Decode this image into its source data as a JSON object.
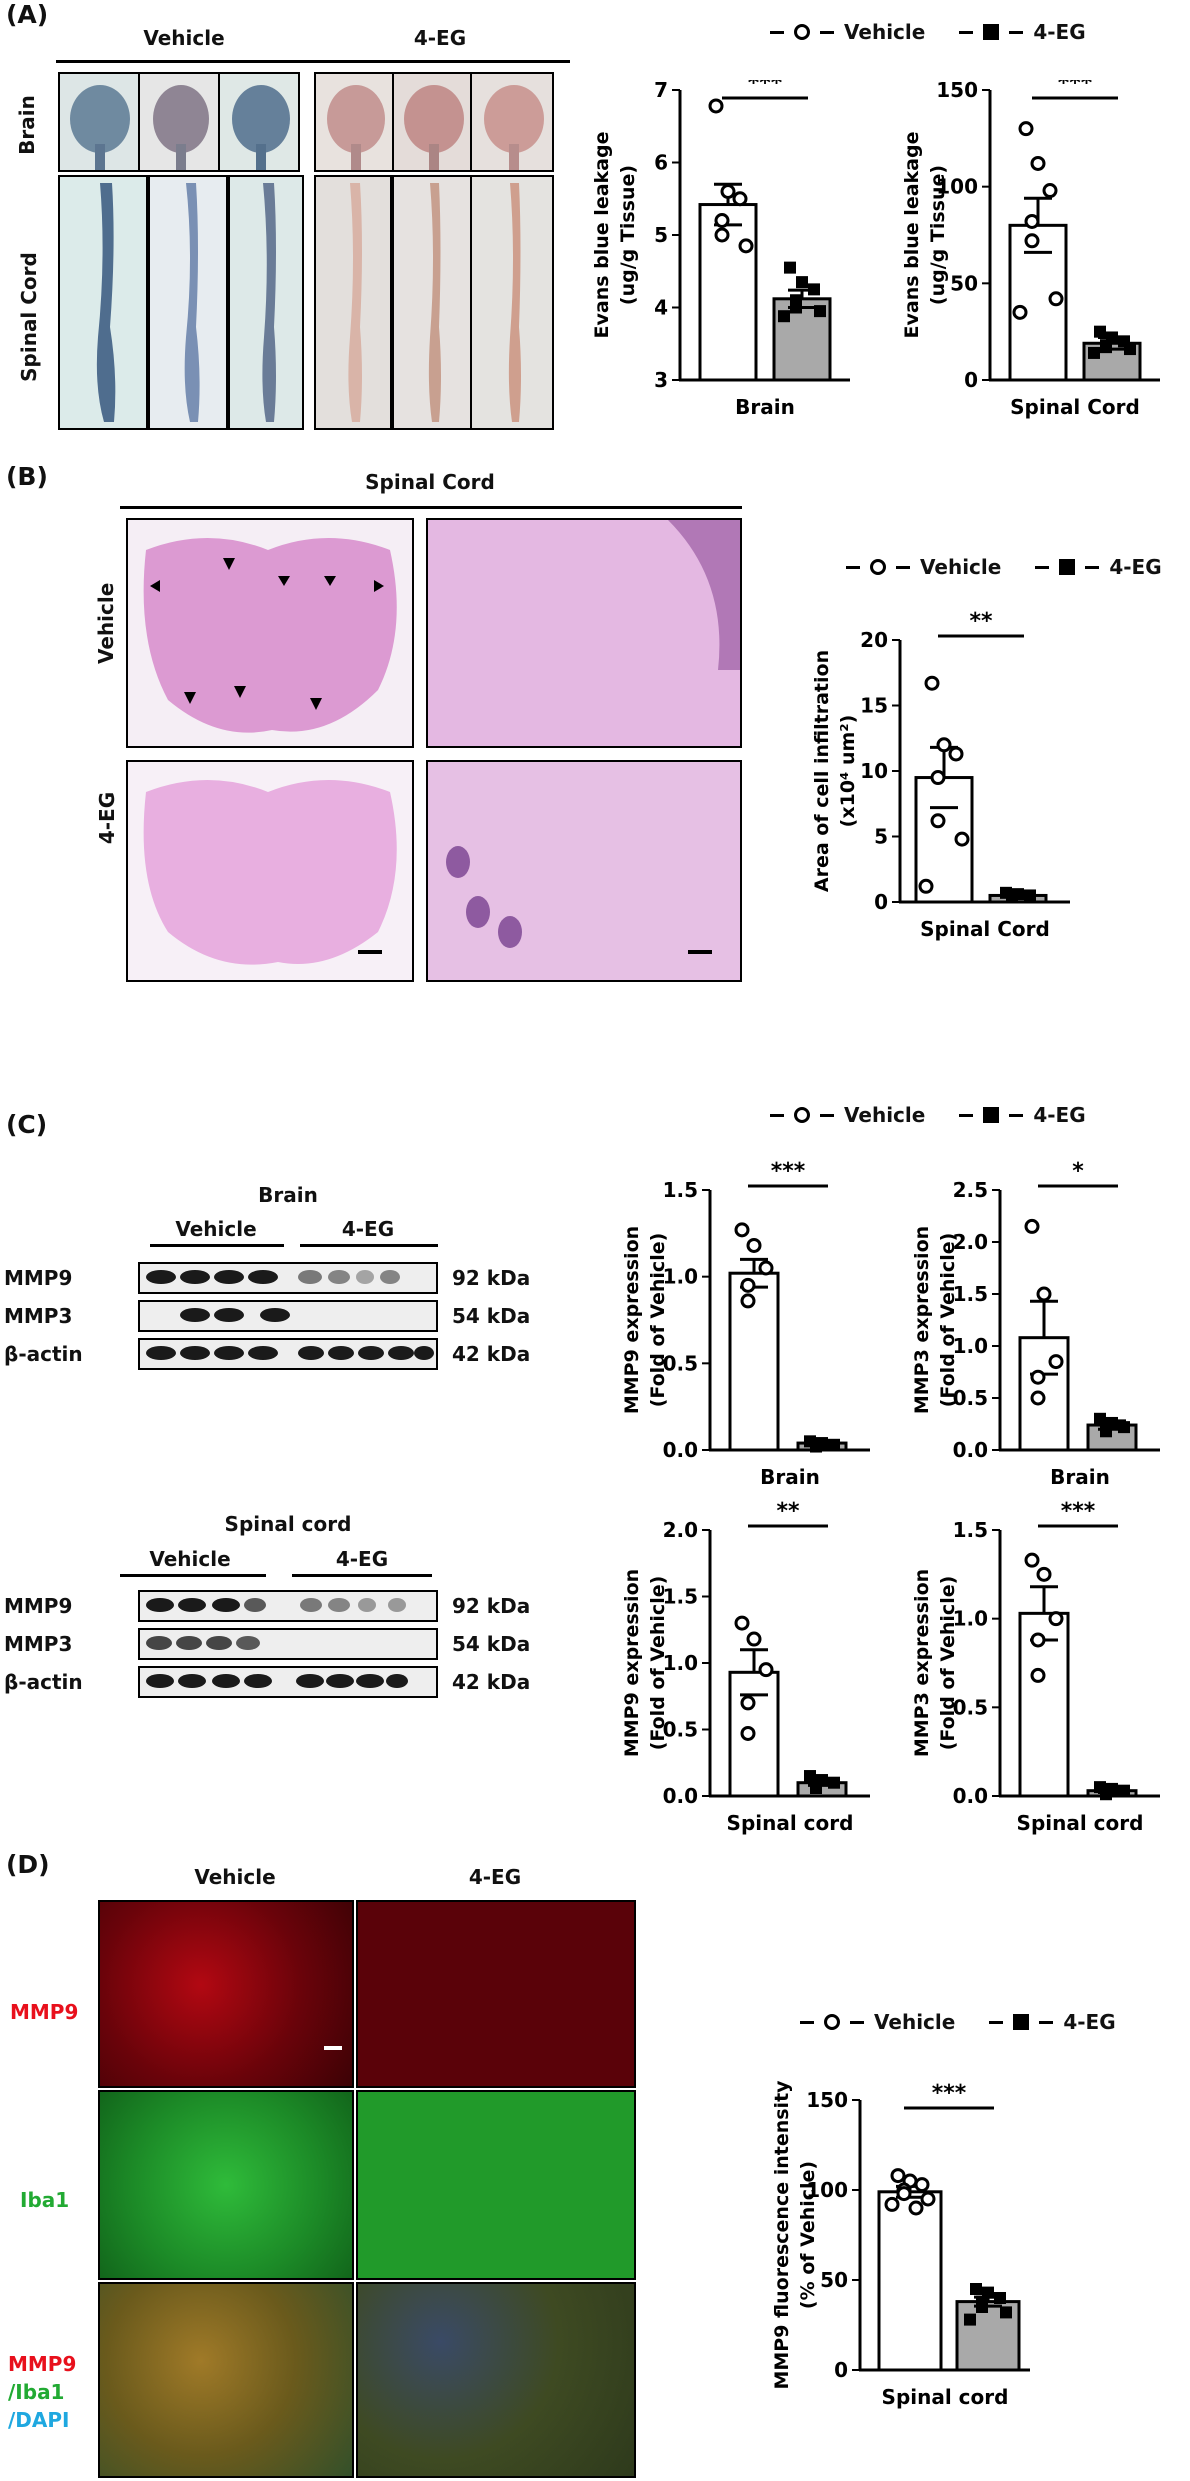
{
  "panels": {
    "A": {
      "label": "(A)",
      "group_vehicle": "Vehicle",
      "group_4eg": "4-EG",
      "row_brain": "Brain",
      "row_spinal": "Spinal Cord",
      "legend_vehicle": "Vehicle",
      "legend_4eg": "4-EG"
    },
    "B": {
      "label": "(B)",
      "header": "Spinal Cord",
      "row_vehicle": "Vehicle",
      "row_4eg": "4-EG",
      "legend_vehicle": "Vehicle",
      "legend_4eg": "4-EG"
    },
    "C": {
      "label": "(C)",
      "legend_vehicle": "Vehicle",
      "legend_4eg": "4-EG",
      "blot_brain_title": "Brain",
      "blot_spinal_title": "Spinal cord",
      "group_vehicle": "Vehicle",
      "group_4eg": "4-EG",
      "rows": [
        {
          "name": "MMP9",
          "kda": "92 kDa"
        },
        {
          "name": "MMP3",
          "kda": "54 kDa"
        },
        {
          "name": "β-actin",
          "kda": "42 kDa"
        }
      ]
    },
    "D": {
      "label": "(D)",
      "col_vehicle": "Vehicle",
      "col_4eg": "4-EG",
      "row_mmp9": "MMP9",
      "row_iba1": "Iba1",
      "merge_mmp9": "MMP9",
      "merge_iba1": "/Iba1",
      "merge_dapi": "/DAPI",
      "legend_vehicle": "Vehicle",
      "legend_4eg": "4-EG"
    }
  },
  "colors": {
    "bar_vehicle": "#ffffff",
    "bar_4eg": "#a9a9a9",
    "mmp9_red": "#e8101c",
    "iba1_green": "#22aa33",
    "dapi_blue": "#1fa8e0"
  },
  "chart_data": [
    {
      "id": "A1",
      "type": "bar",
      "categories": [
        "Vehicle",
        "4-EG"
      ],
      "values": [
        5.42,
        4.12
      ],
      "errors": [
        0.28,
        0.12
      ],
      "points": [
        [
          6.78,
          5.6,
          5.5,
          5.2,
          5.0,
          4.85
        ],
        [
          4.55,
          4.35,
          4.25,
          4.1,
          4.0,
          3.95,
          3.88
        ]
      ],
      "xlabel": "Brain",
      "ylabel": [
        "Evans blue leakage",
        "(ug/g Tissue)"
      ],
      "ylim": [
        3,
        7
      ],
      "yticks": [
        3,
        4,
        5,
        6,
        7
      ],
      "significance": "***"
    },
    {
      "id": "A2",
      "type": "bar",
      "categories": [
        "Vehicle",
        "4-EG"
      ],
      "values": [
        80,
        19
      ],
      "errors": [
        14,
        3
      ],
      "points": [
        [
          130,
          112,
          98,
          82,
          72,
          42,
          35
        ],
        [
          25,
          22,
          20,
          18,
          17,
          16,
          14
        ]
      ],
      "xlabel": "Spinal Cord",
      "ylabel": [
        "Evans blue leakage",
        "(ug/g Tissue)"
      ],
      "ylim": [
        0,
        150
      ],
      "yticks": [
        0,
        50,
        100,
        150
      ],
      "significance": "***"
    },
    {
      "id": "B1",
      "type": "bar",
      "categories": [
        "Vehicle",
        "4-EG"
      ],
      "values": [
        9.5,
        0.5
      ],
      "errors": [
        2.3,
        0.1
      ],
      "points": [
        [
          16.7,
          12.0,
          11.3,
          9.5,
          6.2,
          4.8,
          1.2
        ],
        [
          0.7,
          0.6,
          0.5,
          0.45,
          0.4
        ]
      ],
      "xlabel": "Spinal Cord",
      "ylabel": [
        "Area of cell infiltration",
        "(x10⁴ um²)"
      ],
      "ylim": [
        0,
        20
      ],
      "yticks": [
        0,
        5,
        10,
        15,
        20
      ],
      "significance": "**"
    },
    {
      "id": "C1",
      "type": "bar",
      "categories": [
        "Vehicle",
        "4-EG"
      ],
      "values": [
        1.02,
        0.04
      ],
      "errors": [
        0.08,
        0.01
      ],
      "points": [
        [
          1.27,
          1.18,
          1.05,
          0.95,
          0.86
        ],
        [
          0.05,
          0.04,
          0.03,
          0.03,
          0.02
        ]
      ],
      "xlabel": "Brain",
      "ylabel": [
        "MMP9 expression",
        "(Fold of Vehicle)"
      ],
      "ylim": [
        0,
        1.5
      ],
      "yticks": [
        0.0,
        0.5,
        1.0,
        1.5
      ],
      "significance": "***"
    },
    {
      "id": "C2",
      "type": "bar",
      "categories": [
        "Vehicle",
        "4-EG"
      ],
      "values": [
        1.08,
        0.24
      ],
      "errors": [
        0.35,
        0.04
      ],
      "points": [
        [
          2.15,
          1.5,
          0.85,
          0.7,
          0.5
        ],
        [
          0.3,
          0.26,
          0.22,
          0.2,
          0.18
        ]
      ],
      "xlabel": "Brain",
      "ylabel": [
        "MMP3 expression",
        "(Fold of Vehicle)"
      ],
      "ylim": [
        0,
        2.5
      ],
      "yticks": [
        0.0,
        0.5,
        1.0,
        1.5,
        2.0,
        2.5
      ],
      "significance": "*"
    },
    {
      "id": "C3",
      "type": "bar",
      "categories": [
        "Vehicle",
        "4-EG"
      ],
      "values": [
        0.93,
        0.1
      ],
      "errors": [
        0.17,
        0.02
      ],
      "points": [
        [
          1.3,
          1.18,
          0.95,
          0.7,
          0.47
        ],
        [
          0.15,
          0.12,
          0.1,
          0.07,
          0.06
        ]
      ],
      "xlabel": "Spinal cord",
      "ylabel": [
        "MMP9 expression",
        "(Fold of Vehicle)"
      ],
      "ylim": [
        0,
        2.0
      ],
      "yticks": [
        0.0,
        0.5,
        1.0,
        1.5,
        2.0
      ],
      "significance": "**"
    },
    {
      "id": "C4",
      "type": "bar",
      "categories": [
        "Vehicle",
        "4-EG"
      ],
      "values": [
        1.03,
        0.03
      ],
      "errors": [
        0.15,
        0.01
      ],
      "points": [
        [
          1.33,
          1.25,
          1.0,
          0.88,
          0.68
        ],
        [
          0.05,
          0.04,
          0.03,
          0.02,
          0.01
        ]
      ],
      "xlabel": "Spinal cord",
      "ylabel": [
        "MMP3 expression",
        "(Fold of Vehicle)"
      ],
      "ylim": [
        0,
        1.5
      ],
      "yticks": [
        0.0,
        0.5,
        1.0,
        1.5
      ],
      "significance": "***"
    },
    {
      "id": "D1",
      "type": "bar",
      "categories": [
        "Vehicle",
        "4-EG"
      ],
      "values": [
        99,
        38
      ],
      "errors": [
        3,
        2.5
      ],
      "points": [
        [
          108,
          105,
          103,
          100,
          98,
          95,
          92,
          90
        ],
        [
          45,
          43,
          40,
          38,
          35,
          32,
          28
        ]
      ],
      "xlabel": "Spinal cord",
      "ylabel": [
        "MMP9 fluorescence intensity",
        "(% of Vehicle)"
      ],
      "ylim": [
        0,
        150
      ],
      "yticks": [
        0,
        50,
        100,
        150
      ],
      "significance": "***"
    }
  ]
}
